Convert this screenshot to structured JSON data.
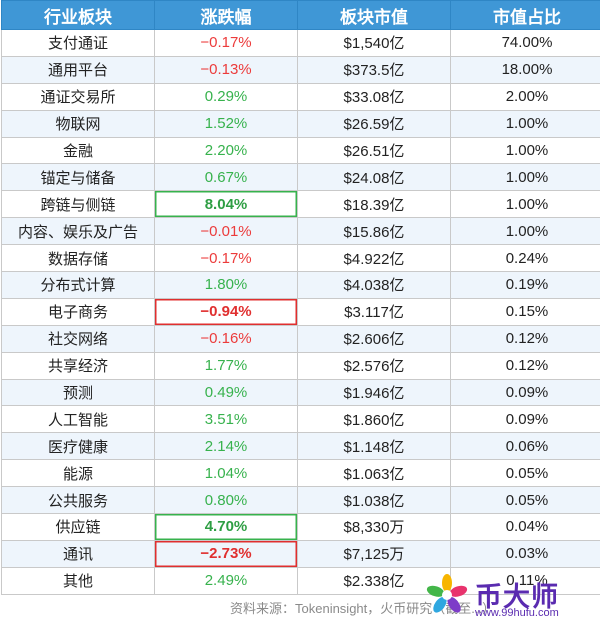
{
  "headers": [
    "行业板块",
    "涨跌幅",
    "板块市值",
    "市值占比"
  ],
  "rows": [
    {
      "sector": "支付通证",
      "change": "−0.17%",
      "dir": "down",
      "cap": "$1,540亿",
      "share": "74.00%"
    },
    {
      "sector": "通用平台",
      "change": "−0.13%",
      "dir": "down",
      "cap": "$373.5亿",
      "share": "18.00%"
    },
    {
      "sector": "通证交易所",
      "change": "0.29%",
      "dir": "up",
      "cap": "$33.08亿",
      "share": "2.00%"
    },
    {
      "sector": "物联网",
      "change": "1.52%",
      "dir": "up",
      "cap": "$26.59亿",
      "share": "1.00%"
    },
    {
      "sector": "金融",
      "change": "2.20%",
      "dir": "up",
      "cap": "$26.51亿",
      "share": "1.00%"
    },
    {
      "sector": "锚定与储备",
      "change": "0.67%",
      "dir": "up",
      "cap": "$24.08亿",
      "share": "1.00%"
    },
    {
      "sector": "跨链与侧链",
      "change": "8.04%",
      "dir": "up",
      "highlight": true,
      "cap": "$18.39亿",
      "share": "1.00%"
    },
    {
      "sector": "内容、娱乐及广告",
      "change": "−0.01%",
      "dir": "down",
      "cap": "$15.86亿",
      "share": "1.00%"
    },
    {
      "sector": "数据存储",
      "change": "−0.17%",
      "dir": "down",
      "cap": "$4.922亿",
      "share": "0.24%"
    },
    {
      "sector": "分布式计算",
      "change": "1.80%",
      "dir": "up",
      "cap": "$4.038亿",
      "share": "0.19%"
    },
    {
      "sector": "电子商务",
      "change": "−0.94%",
      "dir": "down",
      "highlight": true,
      "cap": "$3.117亿",
      "share": "0.15%"
    },
    {
      "sector": "社交网络",
      "change": "−0.16%",
      "dir": "down",
      "cap": "$2.606亿",
      "share": "0.12%"
    },
    {
      "sector": "共享经济",
      "change": "1.77%",
      "dir": "up",
      "cap": "$2.576亿",
      "share": "0.12%"
    },
    {
      "sector": "预测",
      "change": "0.49%",
      "dir": "up",
      "cap": "$1.946亿",
      "share": "0.09%"
    },
    {
      "sector": "人工智能",
      "change": "3.51%",
      "dir": "up",
      "cap": "$1.860亿",
      "share": "0.09%"
    },
    {
      "sector": "医疗健康",
      "change": "2.14%",
      "dir": "up",
      "cap": "$1.148亿",
      "share": "0.06%"
    },
    {
      "sector": "能源",
      "change": "1.04%",
      "dir": "up",
      "cap": "$1.063亿",
      "share": "0.05%"
    },
    {
      "sector": "公共服务",
      "change": "0.80%",
      "dir": "up",
      "cap": "$1.038亿",
      "share": "0.05%"
    },
    {
      "sector": "供应链",
      "change": "4.70%",
      "dir": "up",
      "highlight": true,
      "cap": "$8,330万",
      "share": "0.04%"
    },
    {
      "sector": "通讯",
      "change": "−2.73%",
      "dir": "down",
      "highlight": true,
      "cap": "$7,125万",
      "share": "0.03%"
    },
    {
      "sector": "其他",
      "change": "2.49%",
      "dir": "up",
      "cap": "$2.338亿",
      "share": "0.11%"
    }
  ],
  "source": "资料来源：Tokeninsight，火币研究（截至...）",
  "logo": {
    "name": "币大师",
    "url": "www.99hufu.com"
  },
  "colors": {
    "header_bg": "#3f97d6",
    "up": "#37b24d",
    "down": "#ec3b3b",
    "stripe": "#eef5fc",
    "logo": "#5a2bb0"
  }
}
